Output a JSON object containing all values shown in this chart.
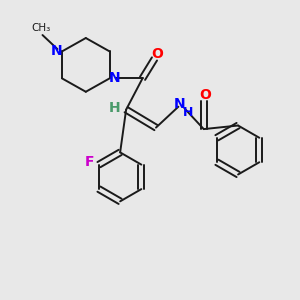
{
  "background_color": "#e8e8e8",
  "bond_color": "#1a1a1a",
  "atom_colors": {
    "N": "#0000ff",
    "O": "#ff0000",
    "F": "#cc00cc",
    "H": "#4a9a6a",
    "C": "#1a1a1a"
  },
  "font_size_atoms": 10,
  "lw": 1.4
}
